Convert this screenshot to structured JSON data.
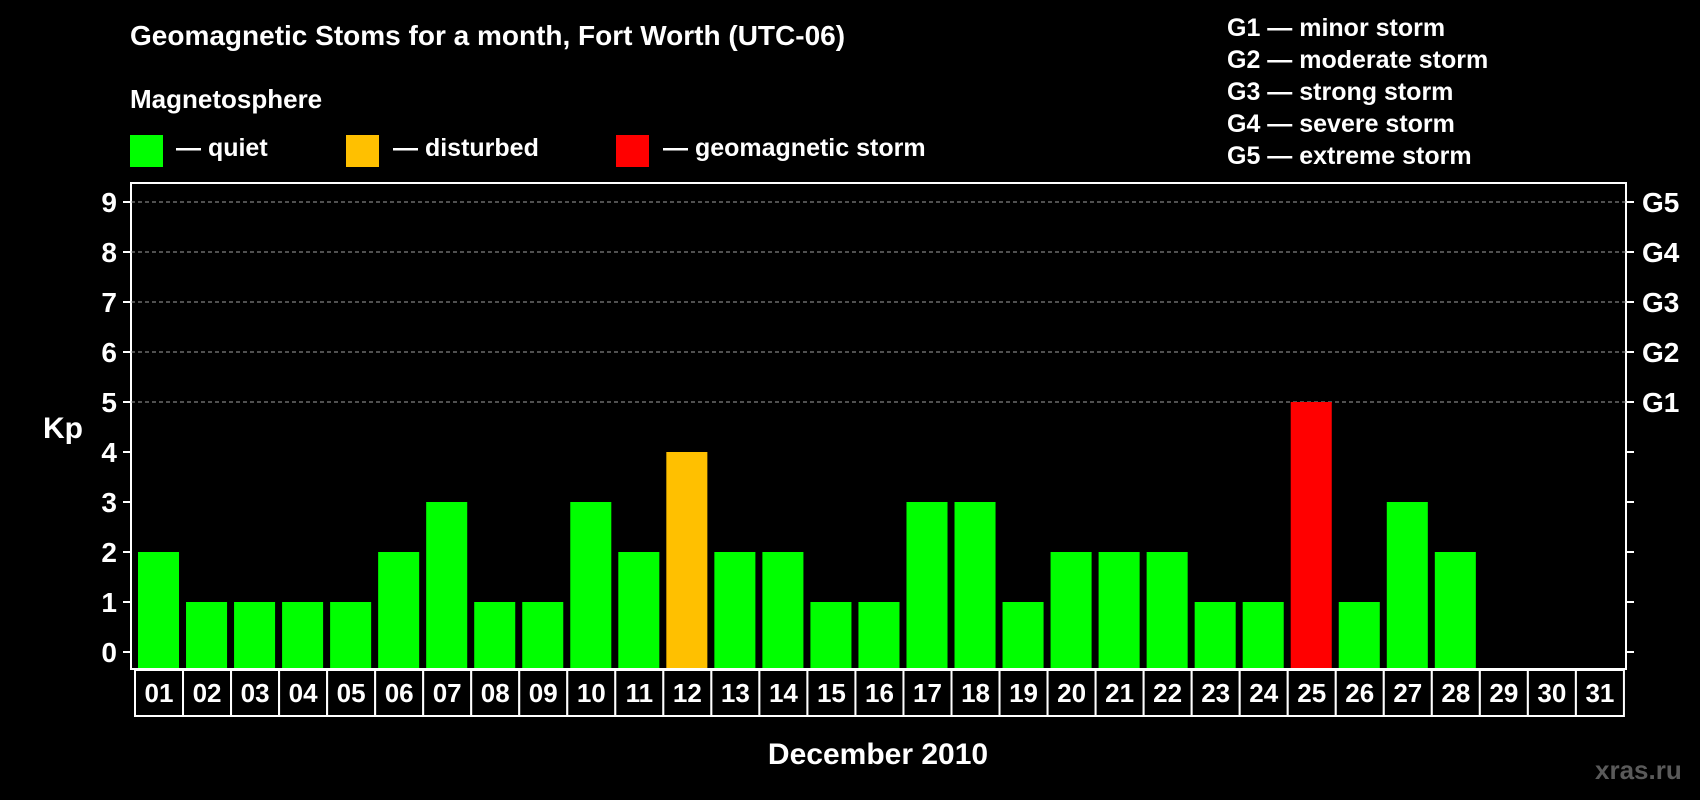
{
  "title": "Geomagnetic Stoms for a month, Fort Worth (UTC-06)",
  "legend": {
    "heading": "Magnetosphere",
    "items": [
      {
        "label": "— quiet",
        "color": "#00ff00"
      },
      {
        "label": "— disturbed",
        "color": "#ffc000"
      },
      {
        "label": "— geomagnetic storm",
        "color": "#ff0000"
      }
    ]
  },
  "g_scale_legend": [
    "G1 — minor storm",
    "G2 — moderate storm",
    "G3 — strong storm",
    "G4 — severe storm",
    "G5 — extreme storm"
  ],
  "watermark": "xras.ru",
  "chart_data": {
    "type": "bar",
    "ylabel": "Kp",
    "xlabel": "December 2010",
    "ylim": [
      0,
      9
    ],
    "yticks": [
      "0",
      "1",
      "2",
      "3",
      "4",
      "5",
      "6",
      "7",
      "8",
      "9"
    ],
    "right_axis_labels": [
      {
        "kp": 5,
        "label": "G1"
      },
      {
        "kp": 6,
        "label": "G2"
      },
      {
        "kp": 7,
        "label": "G3"
      },
      {
        "kp": 8,
        "label": "G4"
      },
      {
        "kp": 9,
        "label": "G5"
      }
    ],
    "categories": [
      "01",
      "02",
      "03",
      "04",
      "05",
      "06",
      "07",
      "08",
      "09",
      "10",
      "11",
      "12",
      "13",
      "14",
      "15",
      "16",
      "17",
      "18",
      "19",
      "20",
      "21",
      "22",
      "23",
      "24",
      "25",
      "26",
      "27",
      "28",
      "29",
      "30",
      "31"
    ],
    "values": [
      2,
      1,
      1,
      1,
      1,
      2,
      3,
      1,
      1,
      3,
      2,
      4,
      2,
      2,
      1,
      1,
      3,
      3,
      1,
      2,
      2,
      2,
      1,
      1,
      5,
      1,
      3,
      2,
      null,
      null,
      null
    ],
    "colors": {
      "quiet": "#00ff00",
      "disturbed": "#ffc000",
      "storm": "#ff0000"
    },
    "grid": true
  }
}
